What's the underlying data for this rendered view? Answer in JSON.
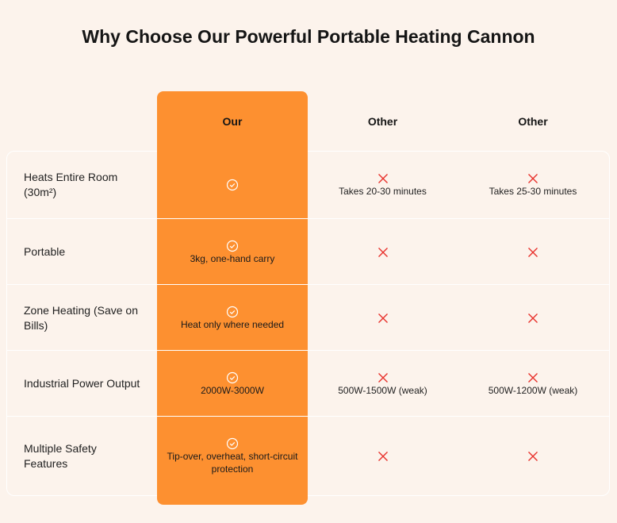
{
  "title": "Why Choose Our Powerful Portable Heating Cannon",
  "colors": {
    "accent": "#fd9030",
    "background": "#fcf3ec",
    "cross": "#e8302a"
  },
  "columns": [
    "Our",
    "Other",
    "Other"
  ],
  "rows": [
    {
      "feature": "Heats Entire Room (30m²)",
      "our": {
        "icon": "check-circle-icon",
        "text": ""
      },
      "other1": {
        "icon": "cross-icon",
        "text": "Takes 20-30 minutes"
      },
      "other2": {
        "icon": "cross-icon",
        "text": "Takes 25-30 minutes"
      }
    },
    {
      "feature": "Portable",
      "our": {
        "icon": "check-circle-icon",
        "text": "3kg, one-hand carry"
      },
      "other1": {
        "icon": "cross-icon",
        "text": ""
      },
      "other2": {
        "icon": "cross-icon",
        "text": ""
      }
    },
    {
      "feature": "Zone Heating (Save on Bills)",
      "our": {
        "icon": "check-circle-icon",
        "text": "Heat only where needed"
      },
      "other1": {
        "icon": "cross-icon",
        "text": ""
      },
      "other2": {
        "icon": "cross-icon",
        "text": ""
      }
    },
    {
      "feature": "Industrial Power Output",
      "our": {
        "icon": "check-circle-icon",
        "text": "2000W-3000W"
      },
      "other1": {
        "icon": "cross-icon",
        "text": "500W-1500W (weak)"
      },
      "other2": {
        "icon": "cross-icon",
        "text": "500W-1200W (weak)"
      }
    },
    {
      "feature": "Multiple Safety Features",
      "our": {
        "icon": "check-circle-icon",
        "text": "Tip-over, overheat, short-circuit protection"
      },
      "other1": {
        "icon": "cross-icon",
        "text": ""
      },
      "other2": {
        "icon": "cross-icon",
        "text": ""
      }
    }
  ]
}
